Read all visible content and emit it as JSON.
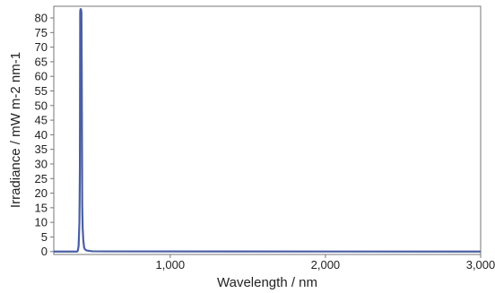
{
  "chart_data": {
    "type": "line",
    "xlabel": "Wavelength / nm",
    "ylabel": "Irradiance / mW m-2 nm-1",
    "xlim": [
      250,
      3000
    ],
    "ylim": [
      -1,
      84
    ],
    "x_ticks": [
      1000,
      2000,
      3000
    ],
    "x_tick_labels": [
      "1,000",
      "2,000",
      "3,000"
    ],
    "y_ticks": [
      0,
      5,
      10,
      15,
      20,
      25,
      30,
      35,
      40,
      45,
      50,
      55,
      60,
      65,
      70,
      75,
      80
    ],
    "y_tick_labels": [
      "0",
      "5",
      "10",
      "15",
      "20",
      "25",
      "30",
      "35",
      "40",
      "45",
      "50",
      "55",
      "60",
      "65",
      "70",
      "75",
      "80"
    ],
    "grid": false,
    "legend": "none",
    "series": [
      {
        "color": "#4a5fa3",
        "x": [
          250,
          400,
          405,
          410,
          415,
          418,
          420,
          422,
          425,
          428,
          430,
          433,
          436,
          440,
          445,
          450,
          460,
          480,
          500,
          600,
          3000
        ],
        "y": [
          0,
          0,
          0.3,
          2,
          10,
          28,
          82,
          83,
          83,
          82,
          62,
          16,
          8,
          4,
          1.5,
          0.8,
          0.4,
          0.2,
          0.1,
          0.05,
          0
        ]
      }
    ]
  }
}
